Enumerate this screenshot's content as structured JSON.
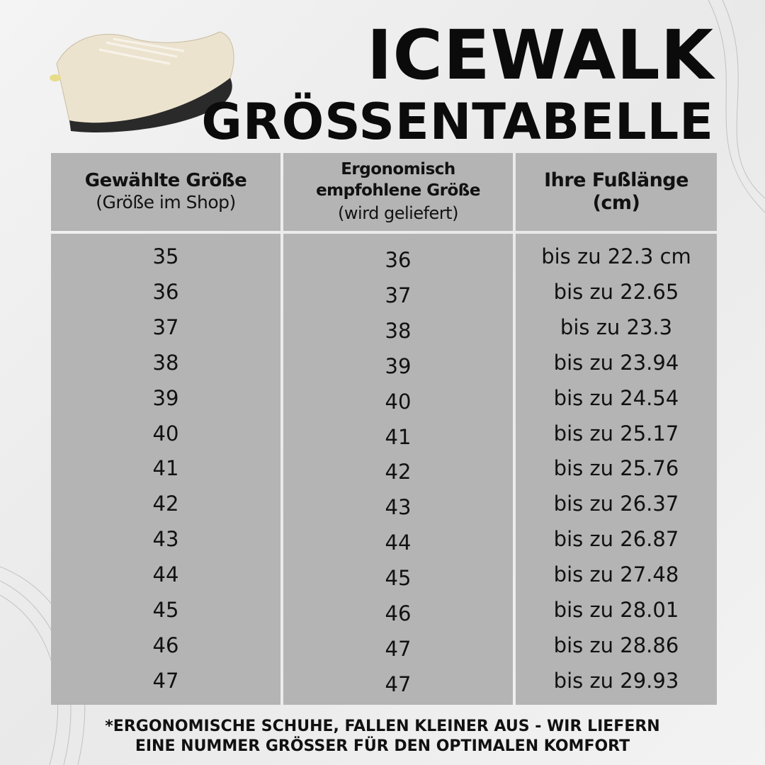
{
  "title": {
    "line1": "ICEWALK",
    "line2": "GRÖSSENTABELLE"
  },
  "table": {
    "headers": [
      {
        "bold": "Gewählte Größe",
        "sub": "(Größe im Shop)"
      },
      {
        "bold": "Ergonomisch empfohlene Größe",
        "sub": "(wird geliefert)"
      },
      {
        "bold": "Ihre Fußlänge (cm)",
        "sub": ""
      }
    ],
    "selected_sizes": [
      "35",
      "36",
      "37",
      "38",
      "39",
      "40",
      "41",
      "42",
      "43",
      "44",
      "45",
      "46",
      "47"
    ],
    "delivered_sizes": [
      "36",
      "37",
      "38",
      "39",
      "40",
      "41",
      "42",
      "43",
      "44",
      "45",
      "46",
      "47",
      "47"
    ],
    "foot_lengths": [
      "bis zu 22.3 cm",
      "bis zu 22.65",
      "bis zu 23.3",
      "bis zu 23.94",
      "bis zu 24.54",
      "bis zu 25.17",
      "bis zu 25.76",
      "bis zu 26.37",
      "bis zu 26.87",
      "bis zu 27.48",
      "bis zu 28.01",
      "bis zu 28.86",
      "bis zu 29.93"
    ]
  },
  "footer": {
    "line1": "*ERGONOMISCHE SCHUHE, FALLEN KLEINER AUS - WIR LIEFERN",
    "line2": "EINE NUMMER GRÖSSER FÜR DEN OPTIMALEN KOMFORT"
  },
  "colors": {
    "cell": "#b4b4b4",
    "text": "#111111"
  }
}
